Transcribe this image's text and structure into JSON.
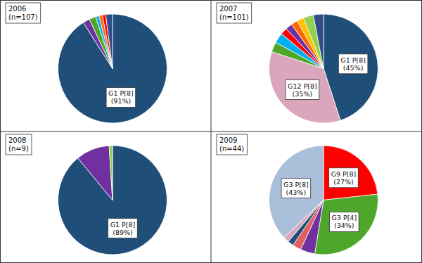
{
  "chart_data": [
    {
      "type": "pie",
      "title": "2006",
      "subtitle": "(n=107)",
      "categories": [
        "G1 P[8]",
        null,
        null,
        null,
        null,
        null,
        null
      ],
      "values": [
        91,
        2,
        2,
        1,
        1,
        1,
        2
      ],
      "value_labels": [
        "(91%)",
        null,
        null,
        null,
        null,
        null,
        null
      ],
      "colors": [
        "#1F4E79",
        "#7030A0",
        "#4EA72A",
        "#00B0F0",
        "#FF6600",
        "#FF0000",
        "#2E4D8A"
      ],
      "data_labels": true
    },
    {
      "type": "pie",
      "title": "2007",
      "subtitle": "(n=101)",
      "categories": [
        "G1 P[8]",
        "G12 P[8]",
        null,
        null,
        null,
        null,
        null,
        null,
        null,
        null
      ],
      "values": [
        45,
        35,
        3,
        3,
        2,
        2,
        2,
        2,
        3,
        3
      ],
      "value_labels": [
        "(45%)",
        "(35%)",
        null,
        null,
        null,
        null,
        null,
        null,
        null,
        null
      ],
      "colors": [
        "#1F4E79",
        "#D9A6BC",
        "#4EA72A",
        "#00B0F0",
        "#FF0000",
        "#7030A0",
        "#FF6600",
        "#FFC000",
        "#92D050",
        "#2E4D8A"
      ],
      "data_labels": true
    },
    {
      "type": "pie",
      "title": "2008",
      "subtitle": "(n=9)",
      "categories": [
        "G1 P[8]",
        null,
        null
      ],
      "values": [
        89,
        10,
        1
      ],
      "value_labels": [
        "(89%)",
        null,
        null
      ],
      "colors": [
        "#1F4E79",
        "#7030A0",
        "#92D050"
      ],
      "data_labels": true
    },
    {
      "type": "pie",
      "title": "2009",
      "subtitle": "(n=44)",
      "categories": [
        "G9 P[8]",
        "G3 P[4]",
        null,
        null,
        null,
        null,
        "G3 P[8]"
      ],
      "values": [
        27,
        34,
        5,
        3,
        2,
        2,
        43
      ],
      "value_labels": [
        "(27%)",
        "(34%)",
        null,
        null,
        null,
        null,
        "(43%)"
      ],
      "colors": [
        "#FF0000",
        "#4EA72A",
        "#7030A0",
        "#E06060",
        "#1F4E79",
        "#D9A6BC",
        "#AABFDA"
      ],
      "data_labels": true
    }
  ]
}
